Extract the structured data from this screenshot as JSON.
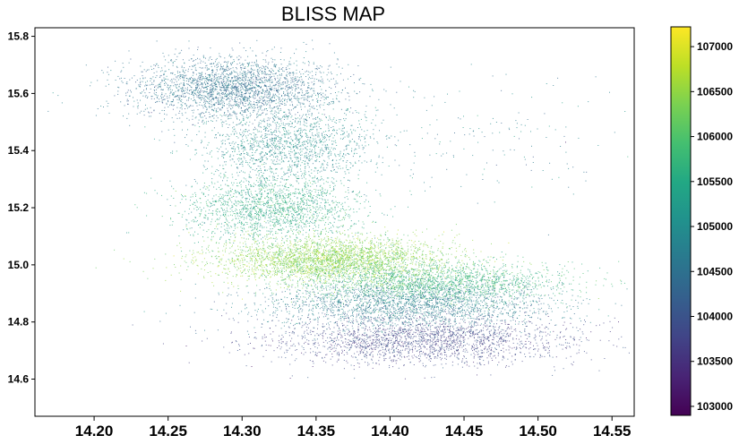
{
  "chart_data": {
    "type": "scatter",
    "title": "BLISS MAP",
    "xlabel": "",
    "ylabel": "",
    "xlim": [
      14.16,
      14.565
    ],
    "ylim": [
      14.47,
      15.83
    ],
    "x_ticks": [
      "14.20",
      "14.25",
      "14.30",
      "14.35",
      "14.40",
      "14.45",
      "14.50",
      "14.55"
    ],
    "x_tick_values": [
      14.2,
      14.25,
      14.3,
      14.35,
      14.4,
      14.45,
      14.5,
      14.55
    ],
    "y_ticks": [
      "14.6",
      "14.8",
      "15.0",
      "15.2",
      "15.4",
      "15.6",
      "15.8"
    ],
    "y_tick_values": [
      14.6,
      14.8,
      15.0,
      15.2,
      15.4,
      15.6,
      15.8
    ],
    "grid": false,
    "colormap": "viridis",
    "colorbar": {
      "range": [
        102900,
        107220
      ],
      "ticks": [
        "103000",
        "103500",
        "104000",
        "104500",
        "105000",
        "105500",
        "106000",
        "106500",
        "107000"
      ],
      "tick_values": [
        103000,
        103500,
        104000,
        104500,
        105000,
        105500,
        106000,
        106500,
        107000
      ]
    },
    "clusters": [
      {
        "x": 14.295,
        "y": 15.62,
        "sx": 0.035,
        "sy": 0.055,
        "c": 104500,
        "cs": 250,
        "n": 2600
      },
      {
        "x": 14.33,
        "y": 15.42,
        "sx": 0.028,
        "sy": 0.07,
        "c": 105000,
        "cs": 300,
        "n": 1500
      },
      {
        "x": 14.32,
        "y": 15.2,
        "sx": 0.03,
        "sy": 0.055,
        "c": 105500,
        "cs": 300,
        "n": 1800
      },
      {
        "x": 14.36,
        "y": 15.02,
        "sx": 0.04,
        "sy": 0.04,
        "c": 106400,
        "cs": 250,
        "n": 3200
      },
      {
        "x": 14.43,
        "y": 14.94,
        "sx": 0.045,
        "sy": 0.035,
        "c": 105700,
        "cs": 300,
        "n": 2000
      },
      {
        "x": 14.41,
        "y": 14.86,
        "sx": 0.05,
        "sy": 0.04,
        "c": 104700,
        "cs": 300,
        "n": 2200
      },
      {
        "x": 14.42,
        "y": 14.74,
        "sx": 0.05,
        "sy": 0.045,
        "c": 103800,
        "cs": 250,
        "n": 2200
      },
      {
        "x": 14.44,
        "y": 15.45,
        "sx": 0.06,
        "sy": 0.12,
        "c": 104800,
        "cs": 400,
        "n": 200
      }
    ]
  }
}
